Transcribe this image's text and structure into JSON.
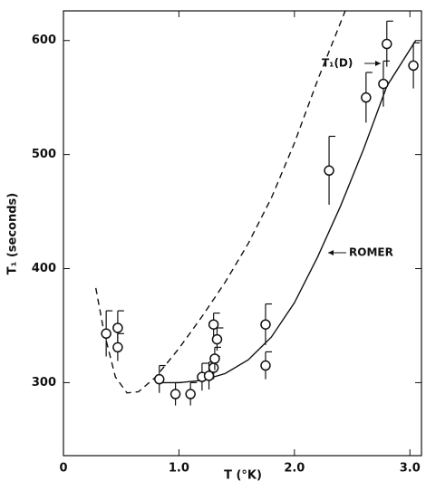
{
  "chart_data": {
    "type": "scatter",
    "xlabel": "T (°K)",
    "ylabel": "T₁ (seconds)",
    "xlim": [
      0,
      3.1
    ],
    "ylim": [
      236,
      626
    ],
    "xticks": [
      0,
      {
        "value": 1,
        "label": "1.0"
      },
      {
        "value": 2,
        "label": "2.0"
      },
      {
        "value": 3,
        "label": "3.0"
      }
    ],
    "yticks": [
      300,
      400,
      500,
      600
    ],
    "color": "#111111",
    "points": {
      "x": [
        0.37,
        0.47,
        0.47,
        0.83,
        0.97,
        1.1,
        1.2,
        1.26,
        1.3,
        1.3,
        1.31,
        1.33,
        1.75,
        1.75,
        2.3,
        2.62,
        2.77,
        2.8,
        3.03
      ],
      "values": [
        343,
        348,
        331,
        303,
        290,
        290,
        305,
        306,
        313,
        351,
        321,
        338,
        351,
        315,
        486,
        550,
        562,
        597,
        578
      ],
      "errors": [
        20,
        15,
        12,
        12,
        10,
        10,
        12,
        12,
        10,
        10,
        10,
        10,
        18,
        12,
        30,
        22,
        20,
        20,
        20
      ]
    },
    "curves": [
      {
        "label": "T₁(D)",
        "dashed": true,
        "x": [
          0.28,
          0.35,
          0.45,
          0.55,
          0.65,
          0.8,
          1.0,
          1.2,
          1.4,
          1.6,
          1.8,
          2.0,
          2.2,
          2.44
        ],
        "values": [
          383,
          345,
          305,
          291,
          292,
          305,
          330,
          358,
          388,
          422,
          462,
          510,
          565,
          626
        ]
      },
      {
        "label": "ROMER",
        "dashed": false,
        "x": [
          0.8,
          1.0,
          1.2,
          1.4,
          1.6,
          1.8,
          2.0,
          2.2,
          2.4,
          2.6,
          2.8,
          3.05
        ],
        "values": [
          300,
          300,
          302,
          308,
          320,
          340,
          370,
          410,
          455,
          505,
          560,
          600
        ]
      }
    ]
  }
}
